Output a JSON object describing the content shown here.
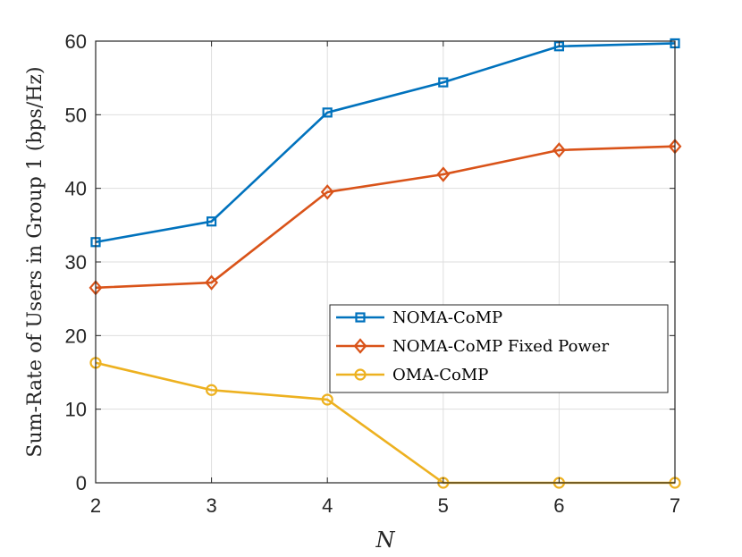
{
  "chart_data": {
    "type": "line",
    "title": "",
    "xlabel": "N",
    "ylabel": "Sum-Rate of Users in Group 1 (bps/Hz)",
    "x": [
      2,
      3,
      4,
      5,
      6,
      7
    ],
    "xlim": [
      2,
      7
    ],
    "ylim": [
      0,
      60
    ],
    "xticks": [
      "2",
      "3",
      "4",
      "5",
      "6",
      "7"
    ],
    "yticks": [
      "0",
      "10",
      "20",
      "30",
      "40",
      "50",
      "60"
    ],
    "grid": true,
    "legend_position": "center-right",
    "series": [
      {
        "name": "NOMA-CoMP",
        "marker": "square",
        "color": "#0072BD",
        "values": [
          32.7,
          35.5,
          50.3,
          54.4,
          59.3,
          59.7
        ]
      },
      {
        "name": "NOMA-CoMP Fixed Power",
        "marker": "diamond",
        "color": "#D95319",
        "values": [
          26.5,
          27.2,
          39.5,
          41.9,
          45.2,
          45.7
        ]
      },
      {
        "name": "OMA-CoMP",
        "marker": "circle",
        "color": "#EDB120",
        "values": [
          16.3,
          12.6,
          11.3,
          0,
          0,
          0
        ]
      }
    ]
  }
}
